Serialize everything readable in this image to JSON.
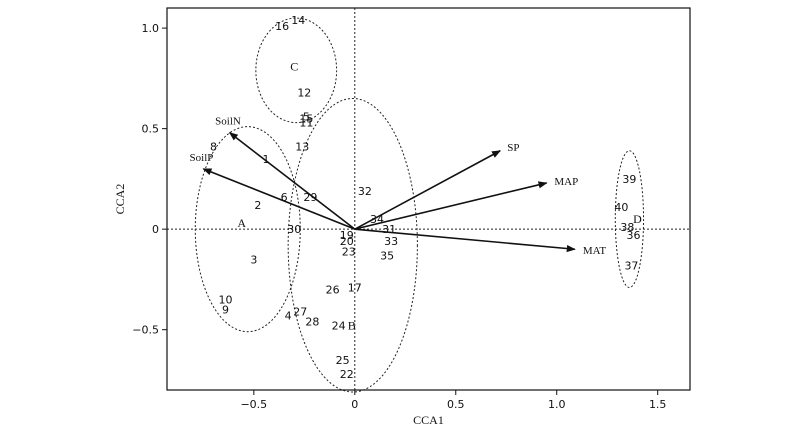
{
  "chart_data": {
    "type": "scatter",
    "title": "",
    "xlabel": "CCA1",
    "ylabel": "CCA2",
    "xlim": [
      -0.93,
      1.66
    ],
    "ylim": [
      -0.8,
      1.1
    ],
    "x_ticks": [
      -0.5,
      0,
      0.5,
      1.0,
      1.5
    ],
    "x_tick_labels": [
      "−0.5",
      "0",
      "0.5",
      "1.0",
      "1.5"
    ],
    "y_ticks": [
      -0.5,
      0,
      0.5,
      1.0
    ],
    "y_tick_labels": [
      "−0.5",
      "0",
      "0.5",
      "1.0"
    ],
    "grid": false,
    "sites": [
      {
        "label": "1",
        "x": -0.44,
        "y": 0.35
      },
      {
        "label": "2",
        "x": -0.48,
        "y": 0.12
      },
      {
        "label": "3",
        "x": -0.5,
        "y": -0.15
      },
      {
        "label": "4",
        "x": -0.33,
        "y": -0.43
      },
      {
        "label": "5",
        "x": -0.24,
        "y": 0.56
      },
      {
        "label": "6",
        "x": -0.35,
        "y": 0.16
      },
      {
        "label": "8",
        "x": -0.7,
        "y": 0.41
      },
      {
        "label": "9",
        "x": -0.64,
        "y": -0.4
      },
      {
        "label": "10",
        "x": -0.64,
        "y": -0.35
      },
      {
        "label": "11",
        "x": -0.24,
        "y": 0.53
      },
      {
        "label": "12",
        "x": -0.25,
        "y": 0.68
      },
      {
        "label": "13",
        "x": -0.26,
        "y": 0.41
      },
      {
        "label": "14",
        "x": -0.28,
        "y": 1.04
      },
      {
        "label": "15",
        "x": -0.24,
        "y": 0.55
      },
      {
        "label": "16",
        "x": -0.36,
        "y": 1.01
      },
      {
        "label": "17",
        "x": 0.0,
        "y": -0.29
      },
      {
        "label": "19",
        "x": -0.04,
        "y": -0.03
      },
      {
        "label": "20",
        "x": -0.04,
        "y": -0.06
      },
      {
        "label": "22",
        "x": -0.04,
        "y": -0.72
      },
      {
        "label": "23",
        "x": -0.03,
        "y": -0.11
      },
      {
        "label": "24",
        "x": -0.08,
        "y": -0.48
      },
      {
        "label": "25",
        "x": -0.06,
        "y": -0.65
      },
      {
        "label": "26",
        "x": -0.11,
        "y": -0.3
      },
      {
        "label": "27",
        "x": -0.27,
        "y": -0.41
      },
      {
        "label": "28",
        "x": -0.21,
        "y": -0.46
      },
      {
        "label": "29",
        "x": -0.22,
        "y": 0.16
      },
      {
        "label": "30",
        "x": -0.3,
        "y": 0.0
      },
      {
        "label": "31",
        "x": 0.17,
        "y": 0.0
      },
      {
        "label": "32",
        "x": 0.05,
        "y": 0.19
      },
      {
        "label": "33",
        "x": 0.18,
        "y": -0.06
      },
      {
        "label": "34",
        "x": 0.11,
        "y": 0.05
      },
      {
        "label": "35",
        "x": 0.16,
        "y": -0.13
      },
      {
        "label": "36",
        "x": 1.38,
        "y": -0.03
      },
      {
        "label": "37",
        "x": 1.37,
        "y": -0.18
      },
      {
        "label": "38",
        "x": 1.35,
        "y": 0.01
      },
      {
        "label": "39",
        "x": 1.36,
        "y": 0.25
      },
      {
        "label": "40",
        "x": 1.32,
        "y": 0.11
      }
    ],
    "env_vectors": [
      {
        "name": "SoilN",
        "x": -0.62,
        "y": 0.48
      },
      {
        "name": "SoilP",
        "x": -0.75,
        "y": 0.3
      },
      {
        "name": "SP",
        "x": 0.72,
        "y": 0.39
      },
      {
        "name": "MAP",
        "x": 0.95,
        "y": 0.23
      },
      {
        "name": "MAT",
        "x": 1.09,
        "y": -0.1
      }
    ],
    "groups": [
      {
        "label": "A",
        "cx": -0.53,
        "cy": 0.0,
        "rx": 0.26,
        "ry": 0.51,
        "label_x": -0.56,
        "label_y": 0.03
      },
      {
        "label": "B",
        "cx": -0.01,
        "cy": -0.08,
        "rx": 0.32,
        "ry": 0.73,
        "label_x": -0.015,
        "label_y": -0.48
      },
      {
        "label": "C",
        "cx": -0.29,
        "cy": 0.79,
        "rx": 0.2,
        "ry": 0.26,
        "label_x": -0.3,
        "label_y": 0.81
      },
      {
        "label": "D",
        "cx": 1.36,
        "cy": 0.05,
        "rx": 0.07,
        "ry": 0.34,
        "label_x": 1.4,
        "label_y": 0.05
      }
    ]
  }
}
